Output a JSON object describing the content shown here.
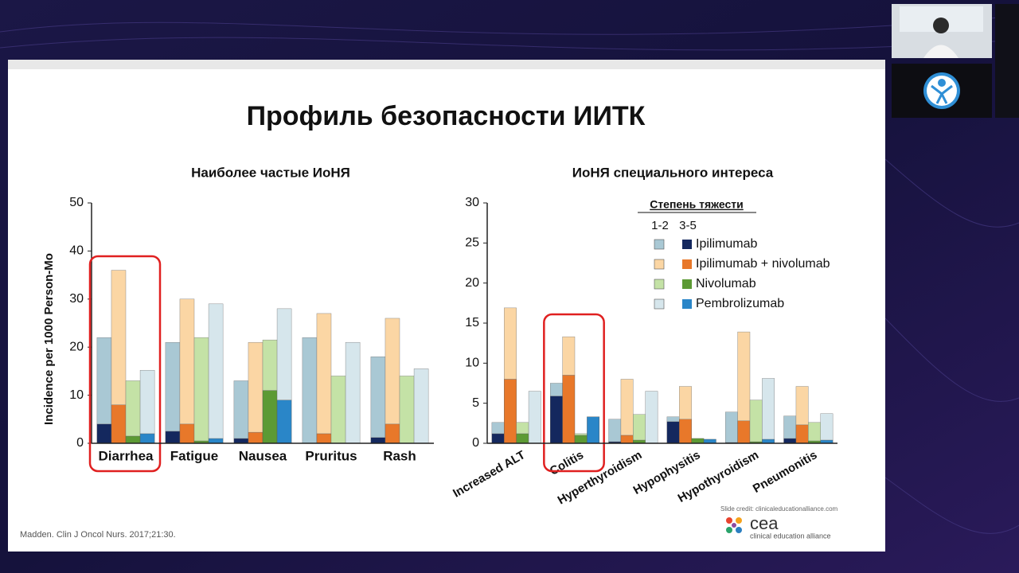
{
  "slide": {
    "title": "Профиль безопасности ИИТК",
    "citation": "Madden. Clin J Oncol Nurs. 2017;21:30.",
    "credit": "Slide credit: clinicaleducationalliance.com",
    "logo_name": "cea",
    "logo_text": "clinical education alliance"
  },
  "chart_data": [
    {
      "type": "stacked-bar",
      "title": "Наиболее частые ИоНЯ",
      "y_label": "Incidence per 1000 Person-Mo",
      "categories": [
        "Diarrhea",
        "Fatigue",
        "Nausea",
        "Pruritus",
        "Rash"
      ],
      "ylim": [
        0,
        50
      ],
      "yticks": [
        0,
        10,
        20,
        30,
        40,
        50
      ],
      "highlight_category": 0,
      "legend": false,
      "series": [
        {
          "color_1_2": "#a9c8d4",
          "color_3_5": "#14285e",
          "grade_3_5": [
            4,
            2.5,
            1,
            0,
            1.2
          ],
          "grade_1_2": [
            18,
            18.5,
            12,
            22,
            16.8
          ]
        },
        {
          "color_1_2": "#fbd6a4",
          "color_3_5": "#e8782a",
          "grade_3_5": [
            8,
            4,
            2.3,
            2,
            4
          ],
          "grade_1_2": [
            28,
            26,
            18.7,
            25,
            22
          ]
        },
        {
          "color_1_2": "#c4e2a6",
          "color_3_5": "#5c9a34",
          "grade_3_5": [
            1.5,
            0.5,
            11,
            0,
            0
          ],
          "grade_1_2": [
            11.5,
            21.5,
            10.5,
            14,
            14
          ]
        },
        {
          "color_1_2": "#d6e6ec",
          "color_3_5": "#2a86c8",
          "grade_3_5": [
            2,
            1,
            9,
            0,
            0
          ],
          "grade_1_2": [
            13.2,
            28,
            19,
            21,
            15.5
          ]
        }
      ]
    },
    {
      "type": "stacked-bar",
      "title": "ИоНЯ специального интереса",
      "categories": [
        "Increased ALT",
        "Colitis",
        "Hyperthyroidism",
        "Hypophysitis",
        "Hypothyroidism",
        "Pneumonitis"
      ],
      "ylim": [
        0,
        30
      ],
      "yticks": [
        0,
        5,
        10,
        15,
        20,
        25,
        30
      ],
      "highlight_category": 1,
      "legend": true,
      "legend_title": "Степень тяжести",
      "grade_labels": [
        "1-2",
        "3-5"
      ],
      "series": [
        {
          "name": "Ipilimumab",
          "color_1_2": "#a9c8d4",
          "color_3_5": "#14285e",
          "grade_3_5": [
            1.2,
            5.9,
            0.2,
            2.7,
            0.1,
            0.6
          ],
          "grade_1_2": [
            1.4,
            1.6,
            2.8,
            0.6,
            3.8,
            2.8
          ]
        },
        {
          "name": "Ipilimumab + nivolumab",
          "color_1_2": "#fbd6a4",
          "color_3_5": "#e8782a",
          "grade_3_5": [
            8,
            8.5,
            1,
            3,
            2.8,
            2.3
          ],
          "grade_1_2": [
            8.9,
            4.8,
            7,
            4.1,
            11.1,
            4.8
          ]
        },
        {
          "name": "Nivolumab",
          "color_1_2": "#c4e2a6",
          "color_3_5": "#5c9a34",
          "grade_3_5": [
            1.2,
            1,
            0.4,
            0.6,
            0.2,
            0.3
          ],
          "grade_1_2": [
            1.4,
            0.2,
            3.2,
            0,
            5.2,
            2.3
          ]
        },
        {
          "name": "Pembrolizumab",
          "color_1_2": "#d6e6ec",
          "color_3_5": "#2a86c8",
          "grade_3_5": [
            0,
            3.3,
            0,
            0.5,
            0.5,
            0.4
          ],
          "grade_1_2": [
            6.5,
            0,
            6.5,
            0,
            7.6,
            3.3
          ]
        }
      ]
    }
  ]
}
